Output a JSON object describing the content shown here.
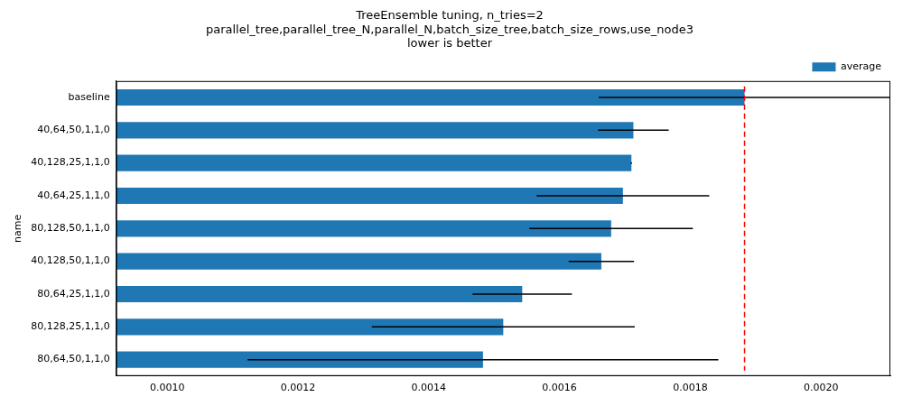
{
  "chart_data": {
    "type": "bar",
    "orientation": "horizontal",
    "title": [
      "TreeEnsemble tuning, n_tries=2",
      "parallel_tree,parallel_tree_N,parallel_N,batch_size_tree,batch_size_rows,use_node3",
      "lower is better"
    ],
    "y_label": "name",
    "categories": [
      "baseline",
      "40,64,50,1,1,0",
      "40,128,25,1,1,0",
      "40,64,25,1,1,0",
      "80,128,50,1,1,0",
      "40,128,50,1,1,0",
      "80,64,25,1,1,0",
      "80,128,25,1,1,0",
      "80,64,50,1,1,0"
    ],
    "series": [
      {
        "name": "average",
        "color": "#1f77b4",
        "values": [
          0.001883,
          0.001713,
          0.00171,
          0.001697,
          0.001679,
          0.001664,
          0.001543,
          0.001514,
          0.001483
        ],
        "errors": [
          0.000223,
          5.4e-05,
          1e-06,
          0.000132,
          0.000125,
          5e-05,
          7.6e-05,
          0.000201,
          0.00036
        ]
      }
    ],
    "vline": 0.001883,
    "xlim": [
      0.000922,
      0.002106
    ],
    "xticks": [
      {
        "value": 0.001,
        "label": "0.0010"
      },
      {
        "value": 0.0012,
        "label": "0.0012"
      },
      {
        "value": 0.0014,
        "label": "0.0014"
      },
      {
        "value": 0.0016,
        "label": "0.0016"
      },
      {
        "value": 0.0018,
        "label": "0.0018"
      },
      {
        "value": 0.002,
        "label": "0.0020"
      }
    ],
    "grid": false,
    "legend": "upper right"
  }
}
